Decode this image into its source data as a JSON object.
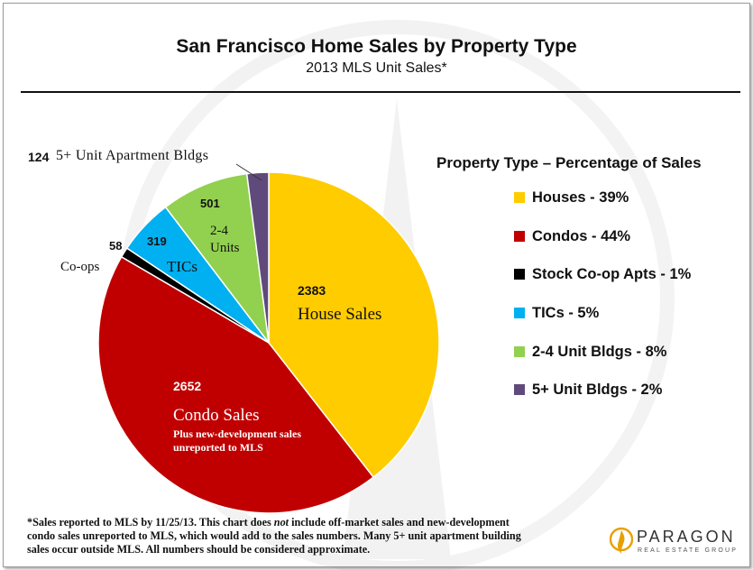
{
  "chart_data": {
    "type": "pie",
    "title": "San Francisco Home Sales by Property Type",
    "subtitle": "2013 MLS Unit Sales*",
    "legend_title": "Property Type – Percentage of Sales",
    "legend_placement": "right",
    "slices": [
      {
        "key": "houses",
        "value": 2383,
        "legend": "Houses - 39%",
        "color": "#FFCC00",
        "count_label": "2383",
        "name_label": "House Sales"
      },
      {
        "key": "condos",
        "value": 2652,
        "legend": "Condos - 44%",
        "color": "#C00000",
        "count_label": "2652",
        "name_label": "Condo Sales",
        "note": "Plus new-development sales unreported to MLS"
      },
      {
        "key": "coops",
        "value": 58,
        "legend": "Stock Co-op Apts - 1%",
        "color": "#000000",
        "count_label": "58",
        "name_label": "Co-ops"
      },
      {
        "key": "tics",
        "value": 319,
        "legend": "TICs - 5%",
        "color": "#00B0F0",
        "count_label": "319",
        "name_label": "TICs"
      },
      {
        "key": "two_four",
        "value": 501,
        "legend": "2-4 Unit Bldgs - 8%",
        "color": "#92D050",
        "count_label": "501",
        "name_label": "2-4 Units"
      },
      {
        "key": "five_plus",
        "value": 124,
        "legend": "5+ Unit Bldgs - 2%",
        "color": "#604A7B",
        "count_label": "124",
        "name_label": "5+ Unit Apartment Bldgs"
      }
    ]
  },
  "footnote": {
    "prefix": "*Sales reported to MLS by 11/25/13. This chart does ",
    "emphasis": "not",
    "rest": " include off-market sales and new-development condo sales unreported to MLS, which would add to the sales numbers. Many 5+ unit apartment building sales occur outside MLS. All numbers should be considered approximate."
  },
  "logo": {
    "name": "PARAGON",
    "tagline": "REAL ESTATE GROUP",
    "icon": "flame-icon"
  }
}
